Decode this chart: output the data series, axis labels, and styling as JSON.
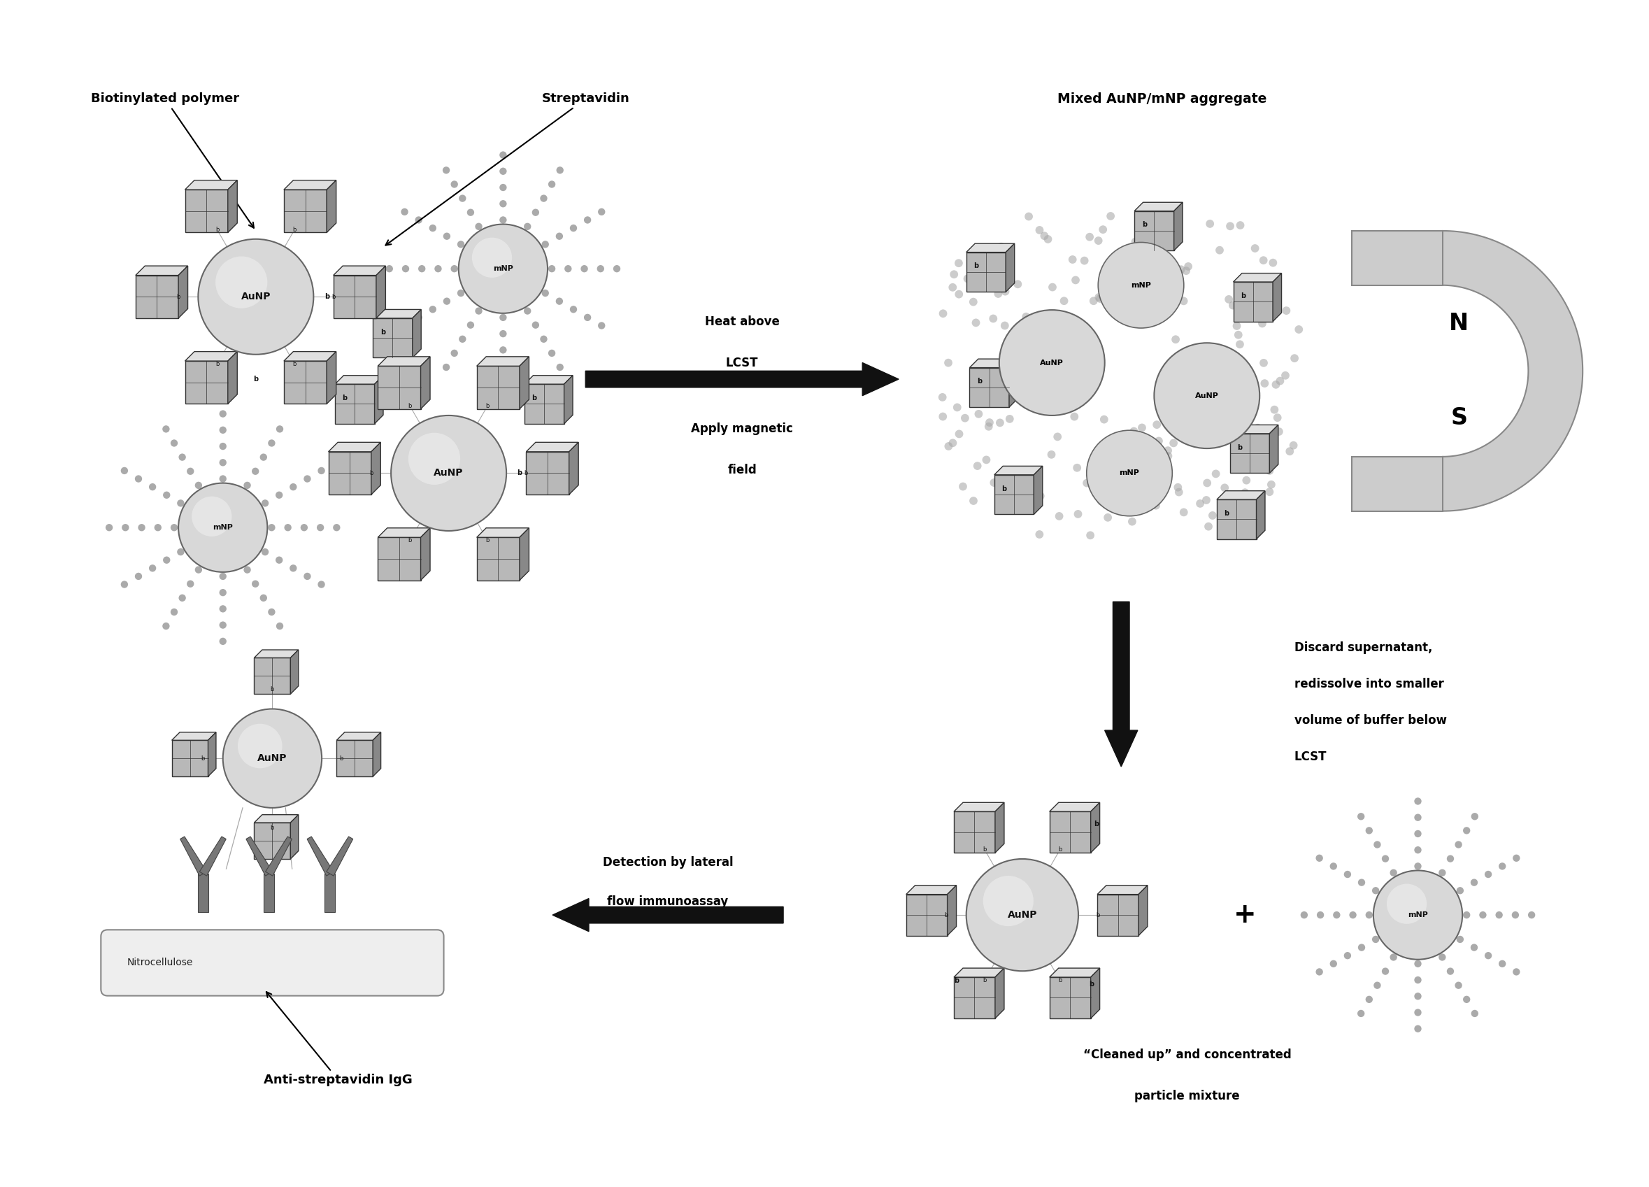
{
  "bg_color": "#ffffff",
  "labels": {
    "biotinylated_polymer": "Biotinylated polymer",
    "streptavidin": "Streptavidin",
    "mixed_aggregate": "Mixed AuNP/mNP aggregate",
    "heat_above": "Heat above",
    "lcst": "LCST",
    "apply_magnetic": "Apply magnetic",
    "field": "field",
    "discard_line1": "Discard supernatant,",
    "discard_line2": "redissolve into smaller",
    "discard_line3": "volume of buffer below",
    "discard_line4": "LCST",
    "detection_line1": "Detection by lateral",
    "detection_line2": "flow immunoassay",
    "cleaned_line1": "“Cleaned up” and concentrated",
    "cleaned_line2": "particle mixture",
    "nitrocellulose": "Nitrocellulose",
    "anti_streptavidin": "Anti-streptavidin IgG",
    "N": "N",
    "S": "S",
    "AuNP": "AuNP",
    "mNP": "mNP",
    "b": "b",
    "plus": "+"
  },
  "colors": {
    "particle_fill": "#d8d8d8",
    "particle_edge": "#666666",
    "cube_front": "#b8b8b8",
    "cube_top": "#e0e0e0",
    "cube_right": "#888888",
    "cube_edge": "#333333",
    "chain_bead": "#aaaaaa",
    "magnet_fill": "#cccccc",
    "magnet_edge": "#888888",
    "arrow_fill": "#111111",
    "nitrocellulose_fill": "#eeeeee",
    "antibody_fill": "#777777",
    "antibody_edge": "#444444",
    "text_main": "#000000",
    "aggregate_bead": "#aaaaaa"
  },
  "fontsize": {
    "label": 13,
    "ns": 24,
    "particle": 10,
    "particle_small": 8,
    "b_label": 7,
    "strip_label": 10,
    "cleaned_label": 12,
    "arrow_label": 12,
    "plus": 28
  }
}
